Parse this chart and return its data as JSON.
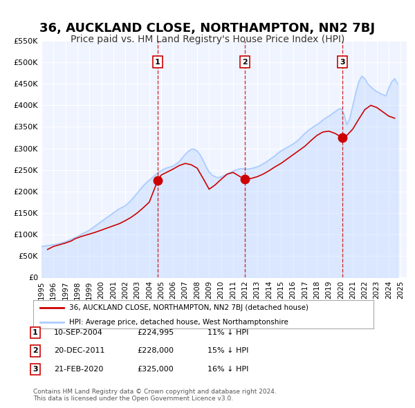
{
  "title": "36, AUCKLAND CLOSE, NORTHAMPTON, NN2 7BJ",
  "subtitle": "Price paid vs. HM Land Registry's House Price Index (HPI)",
  "title_fontsize": 13,
  "subtitle_fontsize": 10,
  "background_color": "#ffffff",
  "plot_bg_color": "#f0f4ff",
  "grid_color": "#ffffff",
  "ylabel": "",
  "ylim": [
    0,
    550000
  ],
  "yticks": [
    0,
    50000,
    100000,
    150000,
    200000,
    250000,
    300000,
    350000,
    400000,
    450000,
    500000,
    550000
  ],
  "ytick_labels": [
    "£0",
    "£50K",
    "£100K",
    "£150K",
    "£200K",
    "£250K",
    "£300K",
    "£350K",
    "£400K",
    "£450K",
    "£500K",
    "£550K"
  ],
  "xlim_start": 1995.0,
  "xlim_end": 2025.5,
  "xticks": [
    1995,
    1996,
    1997,
    1998,
    1999,
    2000,
    2001,
    2002,
    2003,
    2004,
    2005,
    2006,
    2007,
    2008,
    2009,
    2010,
    2011,
    2012,
    2013,
    2014,
    2015,
    2016,
    2017,
    2018,
    2019,
    2020,
    2021,
    2022,
    2023,
    2024,
    2025
  ],
  "red_line_color": "#cc0000",
  "blue_line_color": "#aaccff",
  "blue_line_fill": "#ddeeff",
  "sale_marker_color": "#cc0000",
  "sale_marker_size": 9,
  "sale_dashed_color": "#cc0000",
  "legend_box_color": "#ffffff",
  "legend_border_color": "#aaaaaa",
  "sale_label_box_color": "#ffffff",
  "sale_label_box_border": "#cc0000",
  "footnote": "Contains HM Land Registry data © Crown copyright and database right 2024.\nThis data is licensed under the Open Government Licence v3.0.",
  "legend_line1": "36, AUCKLAND CLOSE, NORTHAMPTON, NN2 7BJ (detached house)",
  "legend_line2": "HPI: Average price, detached house, West Northamptonshire",
  "sale_dates_num": [
    2004.7,
    2011.97,
    2020.13
  ],
  "sale_prices": [
    224995,
    228000,
    325000
  ],
  "sale_labels": [
    "1",
    "2",
    "3"
  ],
  "sale_table": [
    [
      "1",
      "10-SEP-2004",
      "£224,995",
      "11% ↓ HPI"
    ],
    [
      "2",
      "20-DEC-2011",
      "£228,000",
      "15% ↓ HPI"
    ],
    [
      "3",
      "21-FEB-2020",
      "£325,000",
      "16% ↓ HPI"
    ]
  ],
  "hpi_dates": [
    1995.0,
    1995.25,
    1995.5,
    1995.75,
    1996.0,
    1996.25,
    1996.5,
    1996.75,
    1997.0,
    1997.25,
    1997.5,
    1997.75,
    1998.0,
    1998.25,
    1998.5,
    1998.75,
    1999.0,
    1999.25,
    1999.5,
    1999.75,
    2000.0,
    2000.25,
    2000.5,
    2000.75,
    2001.0,
    2001.25,
    2001.5,
    2001.75,
    2002.0,
    2002.25,
    2002.5,
    2002.75,
    2003.0,
    2003.25,
    2003.5,
    2003.75,
    2004.0,
    2004.25,
    2004.5,
    2004.75,
    2005.0,
    2005.25,
    2005.5,
    2005.75,
    2006.0,
    2006.25,
    2006.5,
    2006.75,
    2007.0,
    2007.25,
    2007.5,
    2007.75,
    2008.0,
    2008.25,
    2008.5,
    2008.75,
    2009.0,
    2009.25,
    2009.5,
    2009.75,
    2010.0,
    2010.25,
    2010.5,
    2010.75,
    2011.0,
    2011.25,
    2011.5,
    2011.75,
    2012.0,
    2012.25,
    2012.5,
    2012.75,
    2013.0,
    2013.25,
    2013.5,
    2013.75,
    2014.0,
    2014.25,
    2014.5,
    2014.75,
    2015.0,
    2015.25,
    2015.5,
    2015.75,
    2016.0,
    2016.25,
    2016.5,
    2016.75,
    2017.0,
    2017.25,
    2017.5,
    2017.75,
    2018.0,
    2018.25,
    2018.5,
    2018.75,
    2019.0,
    2019.25,
    2019.5,
    2019.75,
    2020.0,
    2020.25,
    2020.5,
    2020.75,
    2021.0,
    2021.25,
    2021.5,
    2021.75,
    2022.0,
    2022.25,
    2022.5,
    2022.75,
    2023.0,
    2023.25,
    2023.5,
    2023.75,
    2024.0,
    2024.25,
    2024.5,
    2024.75
  ],
  "hpi_values": [
    72000,
    73000,
    74000,
    75000,
    76000,
    77500,
    79000,
    81000,
    83000,
    86000,
    89000,
    92000,
    95000,
    99000,
    103000,
    106000,
    110000,
    115000,
    120000,
    125000,
    130000,
    135000,
    140000,
    145000,
    150000,
    155000,
    160000,
    163000,
    167000,
    173000,
    180000,
    188000,
    196000,
    205000,
    213000,
    220000,
    226000,
    232000,
    238000,
    244000,
    248000,
    252000,
    255000,
    257000,
    259000,
    264000,
    269000,
    278000,
    286000,
    293000,
    298000,
    298000,
    294000,
    285000,
    272000,
    257000,
    245000,
    238000,
    234000,
    232000,
    234000,
    237000,
    240000,
    244000,
    247000,
    250000,
    252000,
    253000,
    252000,
    252000,
    253000,
    255000,
    257000,
    260000,
    264000,
    268000,
    273000,
    278000,
    283000,
    289000,
    294000,
    298000,
    302000,
    306000,
    310000,
    315000,
    321000,
    328000,
    335000,
    341000,
    346000,
    351000,
    355000,
    360000,
    366000,
    371000,
    375000,
    380000,
    385000,
    390000,
    393000,
    380000,
    355000,
    370000,
    400000,
    430000,
    455000,
    468000,
    462000,
    450000,
    443000,
    437000,
    432000,
    428000,
    425000,
    422000,
    440000,
    455000,
    462000,
    450000
  ],
  "price_dates": [
    1995.5,
    1996.0,
    1996.5,
    1997.0,
    1997.5,
    1997.8,
    1998.3,
    1999.5,
    2000.0,
    2000.5,
    2001.0,
    2001.5,
    2002.0,
    2002.5,
    2003.0,
    2003.5,
    2004.0,
    2004.7,
    2005.0,
    2005.5,
    2006.0,
    2006.5,
    2007.0,
    2007.5,
    2008.0,
    2008.5,
    2009.0,
    2009.5,
    2010.0,
    2010.5,
    2011.0,
    2011.97,
    2012.5,
    2013.0,
    2013.5,
    2014.0,
    2014.5,
    2015.0,
    2015.5,
    2016.0,
    2016.5,
    2017.0,
    2017.5,
    2018.0,
    2018.5,
    2019.0,
    2019.5,
    2020.13,
    2020.5,
    2021.0,
    2021.5,
    2022.0,
    2022.5,
    2023.0,
    2023.5,
    2024.0,
    2024.5
  ],
  "price_values": [
    65000,
    72000,
    76000,
    80000,
    85000,
    90000,
    95000,
    105000,
    110000,
    115000,
    120000,
    125000,
    132000,
    140000,
    150000,
    162000,
    175000,
    224995,
    238000,
    245000,
    252000,
    260000,
    265000,
    262000,
    254000,
    230000,
    205000,
    215000,
    228000,
    240000,
    244000,
    228000,
    230000,
    234000,
    240000,
    248000,
    257000,
    265000,
    275000,
    285000,
    295000,
    305000,
    318000,
    330000,
    338000,
    340000,
    335000,
    325000,
    330000,
    345000,
    368000,
    390000,
    400000,
    395000,
    385000,
    375000,
    370000
  ]
}
